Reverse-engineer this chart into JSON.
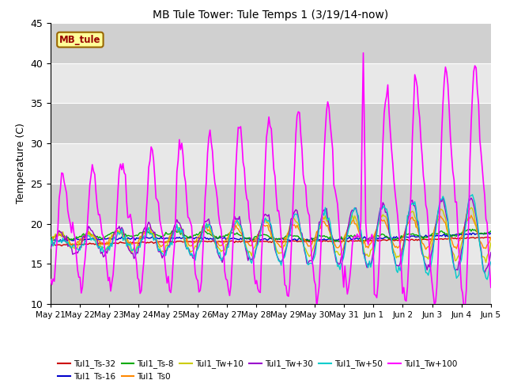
{
  "title": "MB Tule Tower: Tule Temps 1 (3/19/14-now)",
  "ylabel": "Temperature (C)",
  "ylim": [
    10,
    45
  ],
  "yticks": [
    10,
    15,
    20,
    25,
    30,
    35,
    40,
    45
  ],
  "xlabel": "",
  "background_color": "#ffffff",
  "plot_bg_color": "#e0e0e0",
  "grid_color": "#ffffff",
  "band_colors": [
    "#d0d0d0",
    "#e8e8e8"
  ],
  "annotation_text": "MB_tule",
  "annotation_bg": "#ffff99",
  "annotation_border": "#996600",
  "annotation_text_color": "#990000",
  "series": [
    {
      "label": "Tul1_Ts-32",
      "color": "#cc0000",
      "lw": 1.0
    },
    {
      "label": "Tul1_Ts-16",
      "color": "#0000cc",
      "lw": 1.0
    },
    {
      "label": "Tul1_Ts-8",
      "color": "#00aa00",
      "lw": 1.0
    },
    {
      "label": "Tul1_Ts0",
      "color": "#ff8800",
      "lw": 1.0
    },
    {
      "label": "Tul1_Tw+10",
      "color": "#cccc00",
      "lw": 1.0
    },
    {
      "label": "Tul1_Tw+30",
      "color": "#9900cc",
      "lw": 1.0
    },
    {
      "label": "Tul1_Tw+50",
      "color": "#00cccc",
      "lw": 1.0
    },
    {
      "label": "Tul1_Tw+100",
      "color": "#ff00ff",
      "lw": 1.2
    }
  ],
  "x_tick_labels": [
    "May 21",
    "May 22",
    "May 23",
    "May 24",
    "May 25",
    "May 26",
    "May 27",
    "May 28",
    "May 29",
    "May 30",
    "May 31",
    "Jun 1",
    "Jun 2",
    "Jun 3",
    "Jun 4",
    "Jun 5"
  ],
  "x_tick_positions": [
    0,
    1,
    2,
    3,
    4,
    5,
    6,
    7,
    8,
    9,
    10,
    11,
    12,
    13,
    14,
    15
  ]
}
